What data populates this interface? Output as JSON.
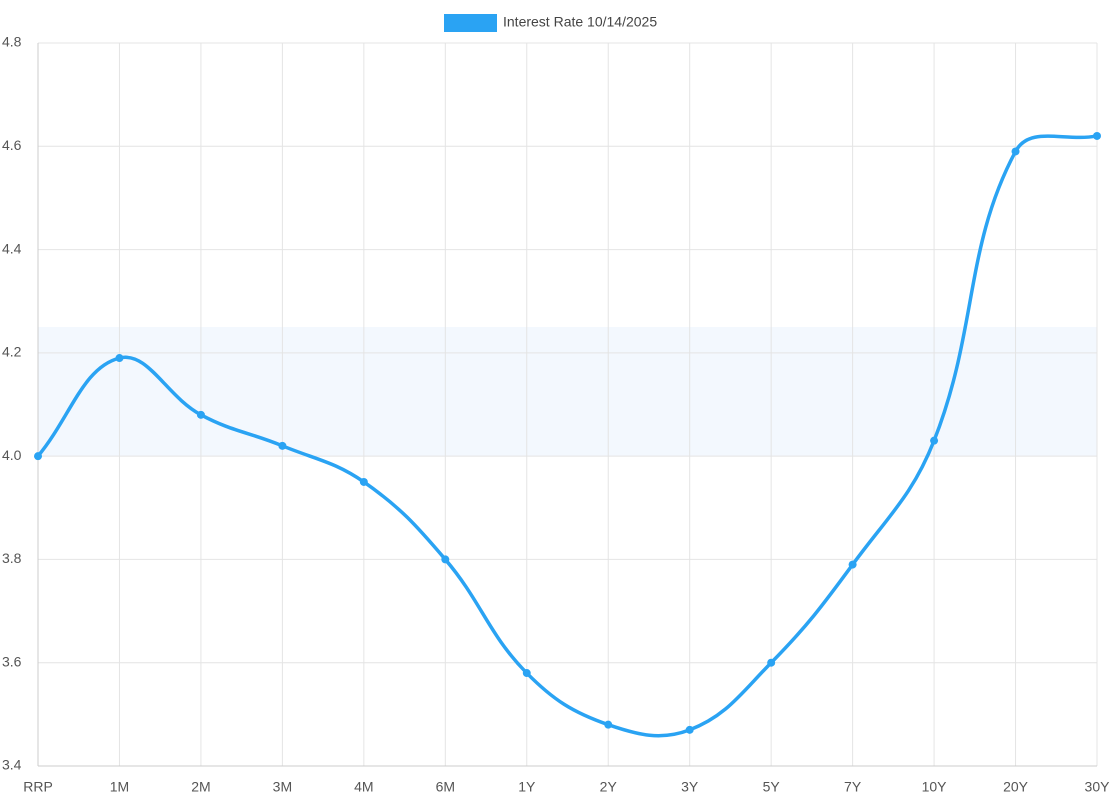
{
  "chart_data": {
    "type": "line",
    "categories": [
      "RRP",
      "1M",
      "2M",
      "3M",
      "4M",
      "6M",
      "1Y",
      "2Y",
      "3Y",
      "5Y",
      "7Y",
      "10Y",
      "20Y",
      "30Y"
    ],
    "series": [
      {
        "name": "Interest Rate 10/14/2025",
        "color": "#2aa3f3",
        "values": [
          4.0,
          4.19,
          4.08,
          4.02,
          3.95,
          3.8,
          3.58,
          3.48,
          3.47,
          3.6,
          3.79,
          4.03,
          4.59,
          4.62
        ]
      }
    ],
    "band": [
      4.0,
      4.25
    ],
    "band_color": "#f3f8fe",
    "ylim": [
      3.4,
      4.8
    ],
    "yticks": [
      3.4,
      3.6,
      3.8,
      {
        "value": 4.0,
        "label": "4.0"
      },
      4.2,
      4.4,
      4.6,
      4.8
    ],
    "grid": true,
    "legend": "top"
  }
}
